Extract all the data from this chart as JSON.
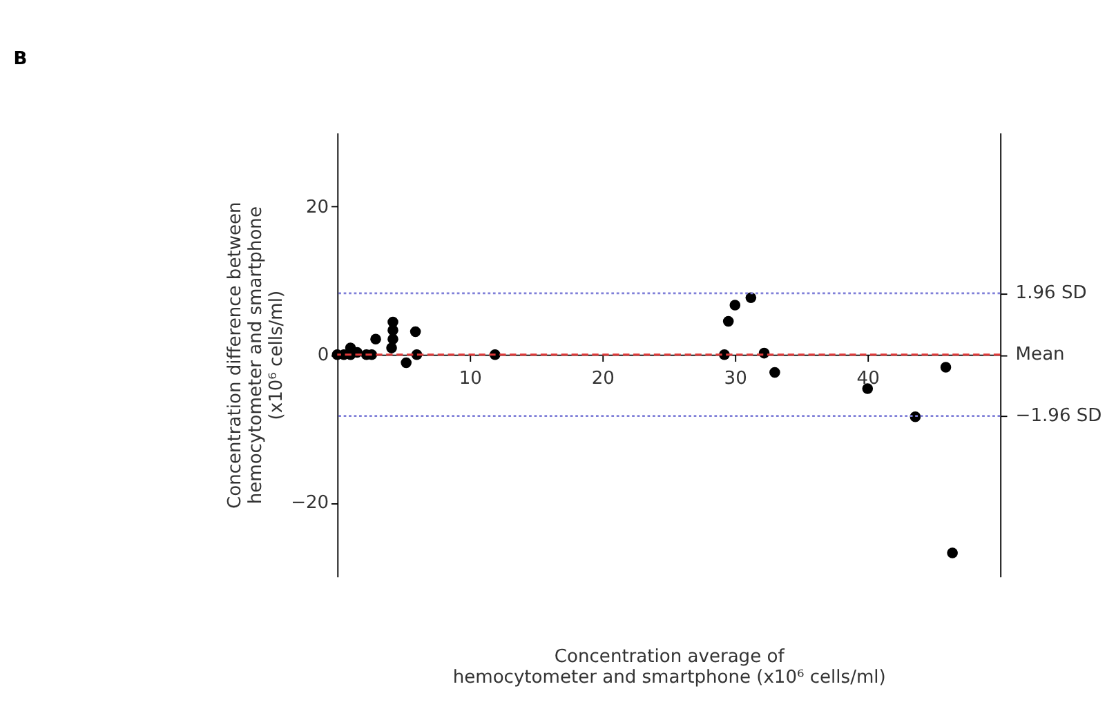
{
  "chart_data": {
    "type": "scatter",
    "title": "B",
    "xlabel": "Concentration average of\nhemocytometer and smartphone  (x10⁶ cells/ml)",
    "ylabel": "Concentration difference between\nhemocytometer and smartphone\n(x10⁶ cells/ml)",
    "x": [
      0,
      0.5,
      1.0,
      1.0,
      1.5,
      2.2,
      2.6,
      2.9,
      4.1,
      4.2,
      4.2,
      4.2,
      5.2,
      5.9,
      6.0,
      11.9,
      29.2,
      29.5,
      30.0,
      31.2,
      32.2,
      33.0,
      40.0,
      43.6,
      45.9,
      46.4
    ],
    "series": [
      {
        "color": "#000000",
        "values": [
          0,
          0,
          0.9,
          0,
          0.3,
          0,
          0,
          2.1,
          0.9,
          4.4,
          3.3,
          2.1,
          -1.1,
          3.1,
          0,
          0,
          0,
          4.5,
          6.7,
          7.7,
          0.2,
          -2.4,
          -4.6,
          -8.4,
          -1.7,
          -26.8
        ]
      }
    ],
    "marker": "circle",
    "xlim": [
      0,
      50
    ],
    "xticks": [
      10,
      20,
      30,
      40
    ],
    "ylim": [
      -30,
      30
    ],
    "yticks": [
      -20,
      0,
      20
    ],
    "ref_lines": [
      {
        "axis": "y",
        "value": 8.3,
        "label": "1.96 SD",
        "color": "#7f7fd8",
        "line_style": "dotted"
      },
      {
        "axis": "y",
        "value": 0,
        "label": "Mean",
        "color": "#e03a3a",
        "line_style": "dashed"
      },
      {
        "axis": "y",
        "value": -8.3,
        "label": "−1.96 SD",
        "color": "#7f7fd8",
        "line_style": "dotted"
      }
    ],
    "grid": false
  }
}
